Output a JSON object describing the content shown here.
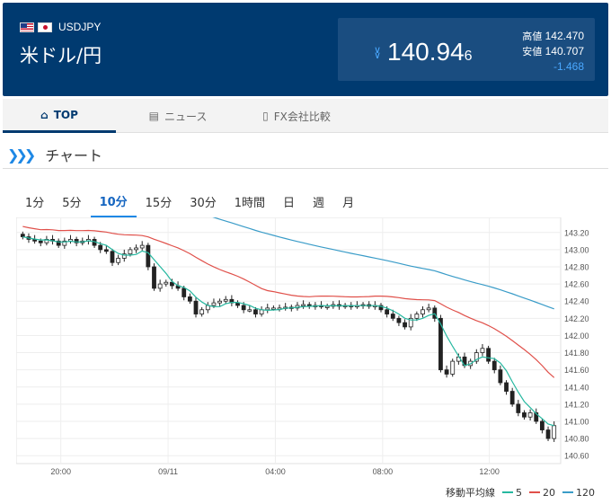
{
  "header": {
    "pair_code": "USDJPY",
    "pair_name": "米ドル/円",
    "price_main": "140.94",
    "price_small": "6",
    "high_label": "高値",
    "high_value": "142.470",
    "low_label": "安値",
    "low_value": "140.707",
    "change": "-1.468",
    "colors": {
      "header_bg": "#003a70",
      "change": "#4aa8ff"
    }
  },
  "tabs": [
    {
      "label": "TOP",
      "icon": "home-icon",
      "active": true
    },
    {
      "label": "ニュース",
      "icon": "newspaper-icon",
      "active": false
    },
    {
      "label": "FX会社比較",
      "icon": "building-icon",
      "active": false
    }
  ],
  "section": {
    "title": "チャート",
    "icon": "double-chevron-right-icon"
  },
  "intervals": [
    "1分",
    "5分",
    "10分",
    "15分",
    "30分",
    "1時間",
    "日",
    "週",
    "月"
  ],
  "active_interval": "10分",
  "legend": {
    "title": "移動平均線",
    "items": [
      {
        "label": "5",
        "color": "#26b8a0"
      },
      {
        "label": "20",
        "color": "#e0504a"
      },
      {
        "label": "120",
        "color": "#3a9cc8"
      }
    ]
  },
  "chart_data": {
    "type": "candlestick",
    "x_tick_labels": [
      "20:00",
      "09/11",
      "04:00",
      "08:00",
      "12:00"
    ],
    "y_tick_labels": [
      "143.20",
      "143.00",
      "142.80",
      "142.60",
      "142.40",
      "142.20",
      "142.00",
      "141.80",
      "141.60",
      "141.40",
      "141.20",
      "141.00",
      "140.80",
      "140.60"
    ],
    "ylim": [
      140.55,
      143.25
    ],
    "grid": true,
    "close_series": [
      143.15,
      143.12,
      143.1,
      143.08,
      143.12,
      143.1,
      143.05,
      143.1,
      143.12,
      143.08,
      143.1,
      143.12,
      143.05,
      143.0,
      142.98,
      142.85,
      142.9,
      142.95,
      143.0,
      143.02,
      143.05,
      142.8,
      142.55,
      142.6,
      142.62,
      142.58,
      142.55,
      142.45,
      142.4,
      142.25,
      142.3,
      142.35,
      142.38,
      142.4,
      142.42,
      142.38,
      142.35,
      142.3,
      142.3,
      142.25,
      142.3,
      142.32,
      142.32,
      142.32,
      142.33,
      142.32,
      142.35,
      142.36,
      142.34,
      142.35,
      142.34,
      142.34,
      142.36,
      142.34,
      142.35,
      142.34,
      142.35,
      142.36,
      142.34,
      142.35,
      142.3,
      142.25,
      142.2,
      142.15,
      142.1,
      142.2,
      142.25,
      142.3,
      142.32,
      142.2,
      141.6,
      141.55,
      141.7,
      141.75,
      141.65,
      141.7,
      141.8,
      141.85,
      141.7,
      141.6,
      141.45,
      141.35,
      141.2,
      141.1,
      141.05,
      141.1,
      141.0,
      140.9,
      140.8,
      140.95
    ]
  }
}
